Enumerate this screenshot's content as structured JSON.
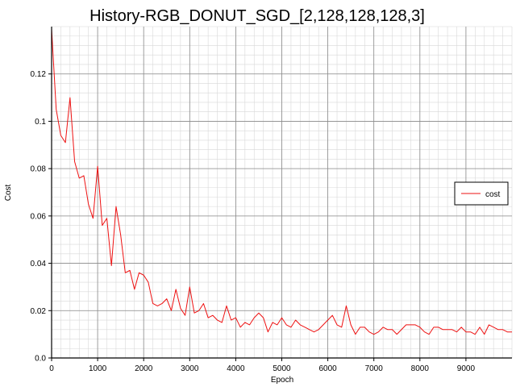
{
  "chart_data": {
    "type": "line",
    "title": "History-RGB_DONUT_SGD_[2,128,128,128,3]",
    "xlabel": "Epoch",
    "ylabel": "Cost",
    "xlim": [
      0,
      10000
    ],
    "ylim": [
      0,
      0.14
    ],
    "xticks": [
      0,
      1000,
      2000,
      3000,
      4000,
      5000,
      6000,
      7000,
      8000,
      9000
    ],
    "yticks": [
      0.0,
      0.02,
      0.04,
      0.06,
      0.08,
      0.1,
      0.12
    ],
    "ytick_labels": [
      "0.0",
      "0.02",
      "0.04",
      "0.06",
      "0.08",
      "0.1",
      "0.12"
    ],
    "grid": true,
    "legend": {
      "position": "right",
      "entries": [
        "cost"
      ]
    },
    "colors": {
      "cost": "#ee1111"
    },
    "series": [
      {
        "name": "cost",
        "x": [
          0,
          100,
          200,
          300,
          400,
          500,
          600,
          700,
          800,
          900,
          1000,
          1100,
          1200,
          1300,
          1400,
          1500,
          1600,
          1700,
          1800,
          1900,
          2000,
          2100,
          2200,
          2300,
          2400,
          2500,
          2600,
          2700,
          2800,
          2900,
          3000,
          3100,
          3200,
          3300,
          3400,
          3500,
          3600,
          3700,
          3800,
          3900,
          4000,
          4100,
          4200,
          4300,
          4400,
          4500,
          4600,
          4700,
          4800,
          4900,
          5000,
          5100,
          5200,
          5300,
          5400,
          5500,
          5600,
          5700,
          5800,
          5900,
          6000,
          6100,
          6200,
          6300,
          6400,
          6500,
          6600,
          6700,
          6800,
          6900,
          7000,
          7100,
          7200,
          7300,
          7400,
          7500,
          7600,
          7700,
          7800,
          7900,
          8000,
          8100,
          8200,
          8300,
          8400,
          8500,
          8600,
          8700,
          8800,
          8900,
          9000,
          9100,
          9200,
          9300,
          9400,
          9500,
          9600,
          9700,
          9800,
          9900,
          10000
        ],
        "values": [
          0.139,
          0.105,
          0.094,
          0.091,
          0.11,
          0.083,
          0.076,
          0.077,
          0.065,
          0.059,
          0.081,
          0.056,
          0.059,
          0.039,
          0.064,
          0.052,
          0.036,
          0.037,
          0.029,
          0.036,
          0.035,
          0.032,
          0.023,
          0.022,
          0.023,
          0.025,
          0.02,
          0.029,
          0.021,
          0.018,
          0.03,
          0.019,
          0.02,
          0.023,
          0.017,
          0.018,
          0.016,
          0.015,
          0.022,
          0.016,
          0.017,
          0.013,
          0.015,
          0.014,
          0.017,
          0.019,
          0.017,
          0.011,
          0.015,
          0.014,
          0.017,
          0.014,
          0.013,
          0.016,
          0.014,
          0.013,
          0.012,
          0.011,
          0.012,
          0.014,
          0.016,
          0.018,
          0.014,
          0.013,
          0.022,
          0.014,
          0.01,
          0.013,
          0.013,
          0.011,
          0.01,
          0.011,
          0.013,
          0.012,
          0.012,
          0.01,
          0.012,
          0.014,
          0.014,
          0.014,
          0.013,
          0.011,
          0.01,
          0.013,
          0.013,
          0.012,
          0.012,
          0.012,
          0.011,
          0.013,
          0.011,
          0.011,
          0.01,
          0.013,
          0.01,
          0.014,
          0.013,
          0.012,
          0.012,
          0.011,
          0.011
        ]
      }
    ]
  }
}
